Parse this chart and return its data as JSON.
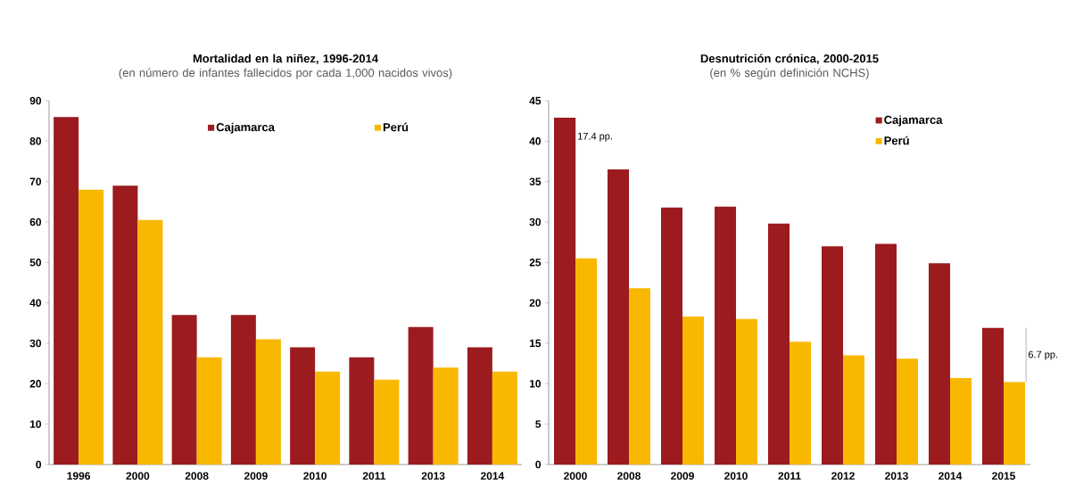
{
  "chart_data": [
    {
      "type": "bar",
      "title": "Mortalidad en la niñez, 1996-2014",
      "subtitle": "(en número de infantes fallecidos por cada 1,000 nacidos vivos)",
      "categories": [
        "1996",
        "2000",
        "2008",
        "2009",
        "2010",
        "2011",
        "2013",
        "2014"
      ],
      "series": [
        {
          "name": "Cajamarca",
          "color": "#9b1b1f",
          "values": [
            86,
            69,
            37,
            37,
            29,
            26.5,
            34,
            29
          ]
        },
        {
          "name": "Perú",
          "color": "#f9b800",
          "values": [
            68,
            60.5,
            26.5,
            31,
            23,
            21,
            24,
            23
          ]
        }
      ],
      "ylim": [
        0,
        90
      ],
      "yticks": [
        0,
        10,
        20,
        30,
        40,
        50,
        60,
        70,
        80,
        90
      ],
      "grid": false,
      "legend": "top"
    },
    {
      "type": "bar",
      "title": "Desnutrición crónica, 2000-2015",
      "subtitle": "(en % según definición NCHS)",
      "categories": [
        "2000",
        "2008",
        "2009",
        "2010",
        "2011",
        "2012",
        "2013",
        "2014",
        "2015"
      ],
      "series": [
        {
          "name": "Cajamarca",
          "color": "#9b1b1f",
          "values": [
            42.9,
            36.5,
            31.8,
            31.9,
            29.8,
            27.0,
            27.3,
            24.9,
            16.9
          ]
        },
        {
          "name": "Perú",
          "color": "#f9b800",
          "values": [
            25.5,
            21.8,
            18.3,
            18.0,
            15.2,
            13.5,
            13.1,
            10.7,
            10.2
          ]
        }
      ],
      "ylim": [
        0,
        45
      ],
      "yticks": [
        0,
        5,
        10,
        15,
        20,
        25,
        30,
        35,
        40,
        45
      ],
      "grid": false,
      "legend": "top right",
      "annotations": [
        {
          "text": "17.4 pp.",
          "x": "2000",
          "y": 40.5
        },
        {
          "text": "6.7 pp.",
          "x": "2015",
          "y": 13.5
        }
      ]
    }
  ]
}
